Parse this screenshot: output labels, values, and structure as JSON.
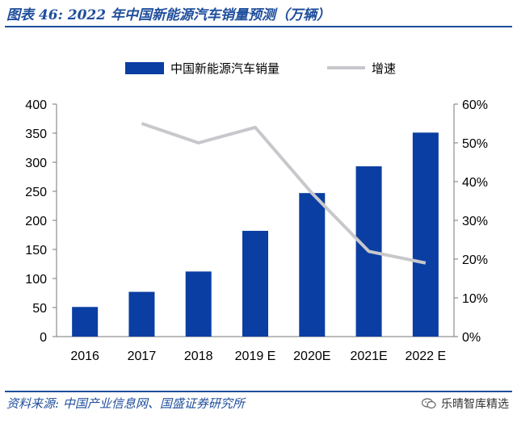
{
  "figure": {
    "title": "图表 46:  2022 年中国新能源汽车销量预测（万辆）",
    "source": "资料来源:  中国产业信息网、国盛证券研究所",
    "watermark": "乐晴智库精选"
  },
  "colors": {
    "bar": "#0b3ea2",
    "line": "#c8c8cc",
    "accent": "#1f4e9c"
  },
  "chart_data": {
    "type": "bar",
    "categories": [
      "2016",
      "2017",
      "2018",
      "2019 E",
      "2020E",
      "2021E",
      "2022 E"
    ],
    "series": [
      {
        "name": "中国新能源汽车销量",
        "type": "bar",
        "axis": "left",
        "values": [
          51,
          77,
          112,
          182,
          247,
          293,
          351
        ]
      },
      {
        "name": "增速",
        "type": "line",
        "axis": "right",
        "values": [
          null,
          55,
          50,
          54,
          37,
          22,
          19
        ]
      }
    ],
    "y_left": {
      "ylim": [
        0,
        400
      ],
      "ticks": [
        0,
        50,
        100,
        150,
        200,
        250,
        300,
        350,
        400
      ]
    },
    "y_right": {
      "ylim": [
        0,
        60
      ],
      "ticks": [
        "0%",
        "10%",
        "20%",
        "30%",
        "40%",
        "50%",
        "60%"
      ]
    },
    "legend": "top",
    "grid": false
  }
}
